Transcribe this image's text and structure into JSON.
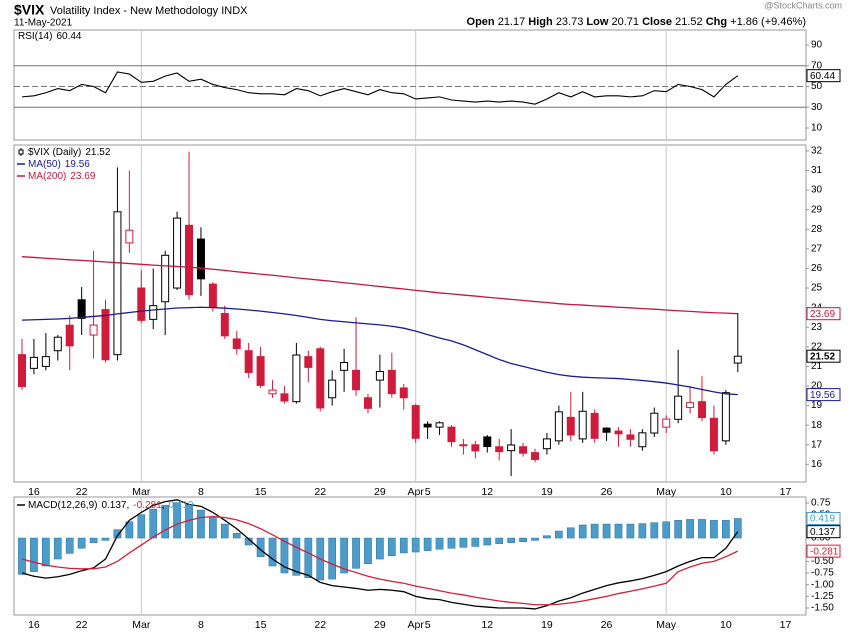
{
  "header": {
    "symbol": "$VIX",
    "name": "Volatility Index - New Methodology INDX",
    "date": "11-May-2021",
    "open_label": "Open",
    "open": 21.17,
    "high_label": "High",
    "high": 23.73,
    "low_label": "Low",
    "low": 20.71,
    "close_label": "Close",
    "close": 21.52,
    "chg_label": "Chg",
    "chg": "+1.86",
    "chg_pct": "(+9.46%)",
    "watermark": "@StockCharts.com"
  },
  "chart_data": [
    {
      "type": "line",
      "ylim": [
        0,
        100
      ],
      "yticks": [
        10,
        30,
        50,
        70,
        90
      ],
      "levels": [
        70,
        30
      ],
      "center_line": 50,
      "series": [
        {
          "name": "RSI(14)",
          "color": "#000000",
          "values": [
            40,
            41,
            44,
            48,
            46,
            52,
            50,
            44,
            64,
            62,
            54,
            55,
            60,
            63,
            55,
            57,
            52,
            49,
            47,
            44,
            43,
            43,
            42,
            48,
            46,
            41,
            45,
            48,
            45,
            42,
            47,
            44,
            43,
            38,
            39,
            40,
            37,
            36,
            35,
            36,
            35,
            36,
            35,
            33,
            38,
            44,
            40,
            45,
            40,
            41,
            41,
            40,
            41,
            46,
            45,
            52,
            50,
            47,
            40,
            52,
            60.44,
            null,
            null,
            null,
            null
          ]
        }
      ]
    },
    {
      "type": "candlestick",
      "name": "$VIX (Daily)",
      "color_up": "#000000",
      "color_down": "#d01c3c",
      "ylim": [
        15.1,
        32.3
      ],
      "yticks": [
        16,
        17,
        18,
        19,
        20,
        21,
        22,
        23,
        24,
        25,
        26,
        27,
        28,
        29,
        30,
        31,
        32
      ],
      "categories": [
        null,
        "16",
        null,
        null,
        null,
        "22",
        null,
        null,
        null,
        null,
        "Mar",
        null,
        null,
        null,
        null,
        "8",
        null,
        null,
        null,
        null,
        "15",
        null,
        null,
        null,
        null,
        "22",
        null,
        null,
        null,
        null,
        "29",
        null,
        null,
        "Apr",
        "5",
        null,
        null,
        null,
        null,
        "12",
        null,
        null,
        null,
        null,
        "19",
        null,
        null,
        null,
        null,
        "26",
        null,
        null,
        null,
        null,
        "May",
        null,
        null,
        null,
        null,
        "10",
        null,
        null,
        null,
        null,
        "17"
      ],
      "open": [
        21.6,
        20.9,
        21.0,
        21.8,
        23.1,
        24.4,
        22.6,
        23.9,
        21.6,
        27.3,
        25.0,
        23.4,
        24.3,
        25.0,
        28.2,
        27.5,
        25.2,
        23.7,
        22.4,
        21.8,
        21.5,
        19.6,
        19.6,
        19.2,
        21.5,
        21.9,
        19.4,
        20.8,
        20.8,
        19.4,
        20.3,
        20.8,
        19.9,
        19.0,
        18.05,
        17.9,
        17.9,
        17.0,
        17.0,
        17.4,
        16.9,
        16.7,
        16.9,
        16.6,
        16.8,
        17.2,
        18.4,
        17.3,
        18.6,
        17.85,
        17.7,
        17.5,
        16.9,
        17.6,
        17.9,
        18.3,
        18.9,
        19.2,
        18.35,
        17.2,
        21.17,
        null,
        null,
        null,
        null
      ],
      "high": [
        22.4,
        22.4,
        22.7,
        22.6,
        23.6,
        25.05,
        26.9,
        24.4,
        31.16,
        31.0,
        25.9,
        26.0,
        26.9,
        28.9,
        31.96,
        28.1,
        25.3,
        24.1,
        22.8,
        22.2,
        22.0,
        20.3,
        20.0,
        22.2,
        21.8,
        22.0,
        20.8,
        21.9,
        23.5,
        19.6,
        21.6,
        21.7,
        20.1,
        19.1,
        18.2,
        18.2,
        18.0,
        17.3,
        17.2,
        17.5,
        17.3,
        17.8,
        17.1,
        16.8,
        17.6,
        19.0,
        19.7,
        19.7,
        18.8,
        17.9,
        17.9,
        17.8,
        17.8,
        18.9,
        18.5,
        21.85,
        20.0,
        20.5,
        19.0,
        19.8,
        23.73,
        null,
        null,
        null,
        null
      ],
      "low": [
        19.8,
        20.6,
        20.8,
        21.3,
        20.8,
        22.6,
        21.4,
        21.2,
        21.3,
        26.8,
        23.2,
        22.9,
        22.6,
        24.9,
        24.4,
        24.6,
        23.8,
        22.4,
        21.6,
        20.4,
        19.9,
        19.4,
        19.1,
        19.1,
        20.2,
        18.7,
        19.0,
        19.7,
        19.5,
        18.6,
        18.9,
        19.4,
        18.8,
        17.1,
        17.3,
        17.5,
        16.9,
        16.5,
        16.3,
        16.6,
        16.2,
        15.4,
        16.4,
        16.1,
        16.5,
        17.0,
        17.2,
        17.1,
        17.1,
        17.2,
        16.9,
        16.9,
        16.7,
        17.4,
        17.6,
        18.1,
        18.6,
        18.2,
        16.5,
        17.0,
        20.71,
        null,
        null,
        null,
        null
      ],
      "close": [
        19.97,
        21.46,
        21.5,
        22.49,
        22.05,
        23.45,
        23.11,
        21.34,
        28.89,
        27.95,
        23.35,
        24.1,
        26.67,
        28.57,
        24.66,
        25.47,
        24.03,
        22.56,
        21.91,
        20.69,
        20.03,
        19.79,
        19.23,
        21.58,
        20.95,
        18.88,
        20.3,
        21.2,
        19.81,
        18.86,
        20.74,
        19.61,
        19.4,
        17.33,
        17.91,
        18.12,
        17.16,
        16.95,
        16.69,
        16.91,
        16.65,
        16.99,
        16.57,
        16.25,
        17.3,
        18.68,
        17.5,
        18.71,
        17.33,
        17.64,
        17.56,
        17.28,
        17.61,
        18.61,
        18.31,
        19.48,
        19.15,
        18.39,
        16.69,
        19.66,
        21.52,
        null,
        null,
        null,
        null
      ],
      "series": [
        {
          "name": "MA(50)",
          "color": "#1c1c8e",
          "values": [
            23.36,
            23.38,
            23.4,
            23.42,
            23.45,
            23.5,
            23.55,
            23.6,
            23.68,
            23.75,
            23.82,
            23.88,
            23.93,
            23.98,
            24.0,
            24.02,
            24.0,
            23.97,
            23.93,
            23.88,
            23.82,
            23.75,
            23.68,
            23.6,
            23.5,
            23.4,
            23.33,
            23.28,
            23.22,
            23.17,
            23.12,
            23.05,
            22.95,
            22.8,
            22.62,
            22.45,
            22.3,
            22.1,
            21.85,
            21.6,
            21.35,
            21.15,
            21.0,
            20.85,
            20.7,
            20.58,
            20.5,
            20.45,
            20.42,
            20.4,
            20.38,
            20.33,
            20.28,
            20.22,
            20.15,
            20.05,
            19.95,
            19.82,
            19.7,
            19.6,
            19.56,
            null,
            null,
            null,
            null
          ]
        },
        {
          "name": "MA(200)",
          "color": "#c4163e",
          "values": [
            26.6,
            26.56,
            26.52,
            26.48,
            26.44,
            26.41,
            26.37,
            26.33,
            26.29,
            26.25,
            26.21,
            26.17,
            26.13,
            26.1,
            26.06,
            26.02,
            25.96,
            25.9,
            25.83,
            25.77,
            25.71,
            25.65,
            25.59,
            25.52,
            25.46,
            25.4,
            25.34,
            25.27,
            25.21,
            25.14,
            25.08,
            25.01,
            24.95,
            24.88,
            24.82,
            24.75,
            24.7,
            24.64,
            24.59,
            24.53,
            24.48,
            24.42,
            24.37,
            24.31,
            24.26,
            24.2,
            24.16,
            24.13,
            24.09,
            24.06,
            24.02,
            23.99,
            23.95,
            23.92,
            23.88,
            23.84,
            23.81,
            23.77,
            23.74,
            23.72,
            23.69,
            null,
            null,
            null,
            null
          ]
        }
      ]
    },
    {
      "type": "line",
      "legend_title": "MACD(12,26,9)",
      "legend_separator": ",",
      "ylim": [
        -1.65,
        0.88
      ],
      "yticks": [
        0.75,
        {
          "value": 0.5,
          "label": "0.50"
        },
        0.25,
        {
          "value": 0,
          "label": "0.00"
        },
        -0.25,
        {
          "value": -0.5,
          "label": "-0.50"
        },
        -0.75,
        {
          "value": -1,
          "label": "-1.00"
        },
        -1.25,
        {
          "value": -1.5,
          "label": "-1.50"
        }
      ],
      "categories": [
        null,
        "16",
        null,
        null,
        null,
        "22",
        null,
        null,
        null,
        null,
        "Mar",
        null,
        null,
        null,
        null,
        "8",
        null,
        null,
        null,
        null,
        "15",
        null,
        null,
        null,
        null,
        "22",
        null,
        null,
        null,
        null,
        "29",
        null,
        null,
        "Apr",
        "5",
        null,
        null,
        null,
        null,
        "12",
        null,
        null,
        null,
        null,
        "19",
        null,
        null,
        null,
        null,
        "26",
        null,
        null,
        null,
        null,
        "May",
        null,
        null,
        null,
        null,
        "10",
        null,
        null,
        null,
        null,
        "17"
      ],
      "series": [
        {
          "color": "#000000",
          "values": [
            -0.75,
            -0.82,
            -0.86,
            -0.83,
            -0.78,
            -0.7,
            -0.64,
            -0.45,
            0.05,
            0.38,
            0.55,
            0.7,
            0.78,
            0.82,
            0.72,
            0.68,
            0.55,
            0.38,
            0.2,
            -0.02,
            -0.25,
            -0.45,
            -0.62,
            -0.72,
            -0.8,
            -0.95,
            -1.02,
            -1.05,
            -1.08,
            -1.12,
            -1.1,
            -1.12,
            -1.15,
            -1.25,
            -1.3,
            -1.32,
            -1.38,
            -1.42,
            -1.46,
            -1.48,
            -1.5,
            -1.5,
            -1.5,
            -1.52,
            -1.45,
            -1.35,
            -1.28,
            -1.18,
            -1.1,
            -1.02,
            -0.96,
            -0.92,
            -0.87,
            -0.8,
            -0.72,
            -0.6,
            -0.5,
            -0.42,
            -0.42,
            -0.22,
            0.137,
            null,
            null,
            null,
            null
          ]
        },
        {
          "color": "#d0203a",
          "values": [
            -0.45,
            -0.52,
            -0.58,
            -0.62,
            -0.65,
            -0.66,
            -0.66,
            -0.62,
            -0.5,
            -0.32,
            -0.15,
            0.02,
            0.17,
            0.3,
            0.38,
            0.44,
            0.46,
            0.44,
            0.39,
            0.31,
            0.2,
            0.07,
            -0.07,
            -0.2,
            -0.32,
            -0.45,
            -0.56,
            -0.66,
            -0.74,
            -0.82,
            -0.88,
            -0.93,
            -0.97,
            -1.03,
            -1.08,
            -1.13,
            -1.18,
            -1.22,
            -1.27,
            -1.31,
            -1.35,
            -1.38,
            -1.4,
            -1.43,
            -1.43,
            -1.42,
            -1.39,
            -1.35,
            -1.3,
            -1.25,
            -1.19,
            -1.14,
            -1.09,
            -1.03,
            -0.97,
            -0.72,
            -0.62,
            -0.54,
            -0.5,
            -0.4,
            -0.281,
            null,
            null,
            null,
            null
          ]
        },
        {
          "type": "bar",
          "color": "#4b9ccb",
          "values": [
            -0.78,
            -0.72,
            -0.6,
            -0.45,
            -0.33,
            -0.22,
            -0.1,
            -0.05,
            0.18,
            0.35,
            0.5,
            0.62,
            0.7,
            0.76,
            0.72,
            0.6,
            0.45,
            0.3,
            0.1,
            -0.15,
            -0.4,
            -0.6,
            -0.75,
            -0.8,
            -0.85,
            -0.9,
            -0.88,
            -0.75,
            -0.65,
            -0.55,
            -0.45,
            -0.38,
            -0.32,
            -0.3,
            -0.27,
            -0.24,
            -0.22,
            -0.2,
            -0.18,
            -0.15,
            -0.12,
            -0.1,
            -0.08,
            -0.05,
            0.05,
            0.15,
            0.22,
            0.28,
            0.3,
            0.3,
            0.3,
            0.3,
            0.31,
            0.33,
            0.35,
            0.38,
            0.4,
            0.4,
            0.38,
            0.38,
            0.419,
            null,
            null,
            null,
            null
          ]
        }
      ]
    }
  ]
}
